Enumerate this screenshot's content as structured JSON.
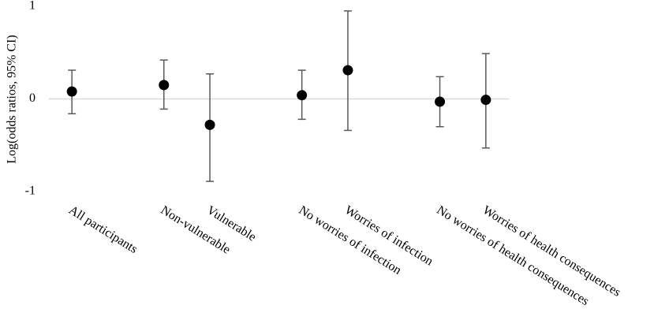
{
  "chart_data": {
    "type": "errorbar",
    "y_label": "Log(odds ratios, 95% CI)",
    "categories": [
      "All participants",
      null,
      "Non-vulnerable",
      "Vulnerable",
      null,
      "No worries of infection",
      "Worries of infection",
      null,
      "No worries of health consequences",
      "Worries of health consequences"
    ],
    "values": [
      0.08,
      null,
      0.15,
      -0.28,
      null,
      0.04,
      0.31,
      null,
      -0.03,
      -0.01
    ],
    "ci_lower": [
      -0.16,
      null,
      -0.11,
      -0.89,
      null,
      -0.22,
      -0.34,
      null,
      -0.3,
      -0.53
    ],
    "ci_upper": [
      0.31,
      null,
      0.42,
      0.27,
      null,
      0.31,
      0.95,
      null,
      0.24,
      0.49
    ],
    "color": "#000000",
    "error_color": "#595959",
    "ylim": [
      -1,
      1
    ],
    "yticks": [
      -1,
      0,
      1
    ]
  }
}
